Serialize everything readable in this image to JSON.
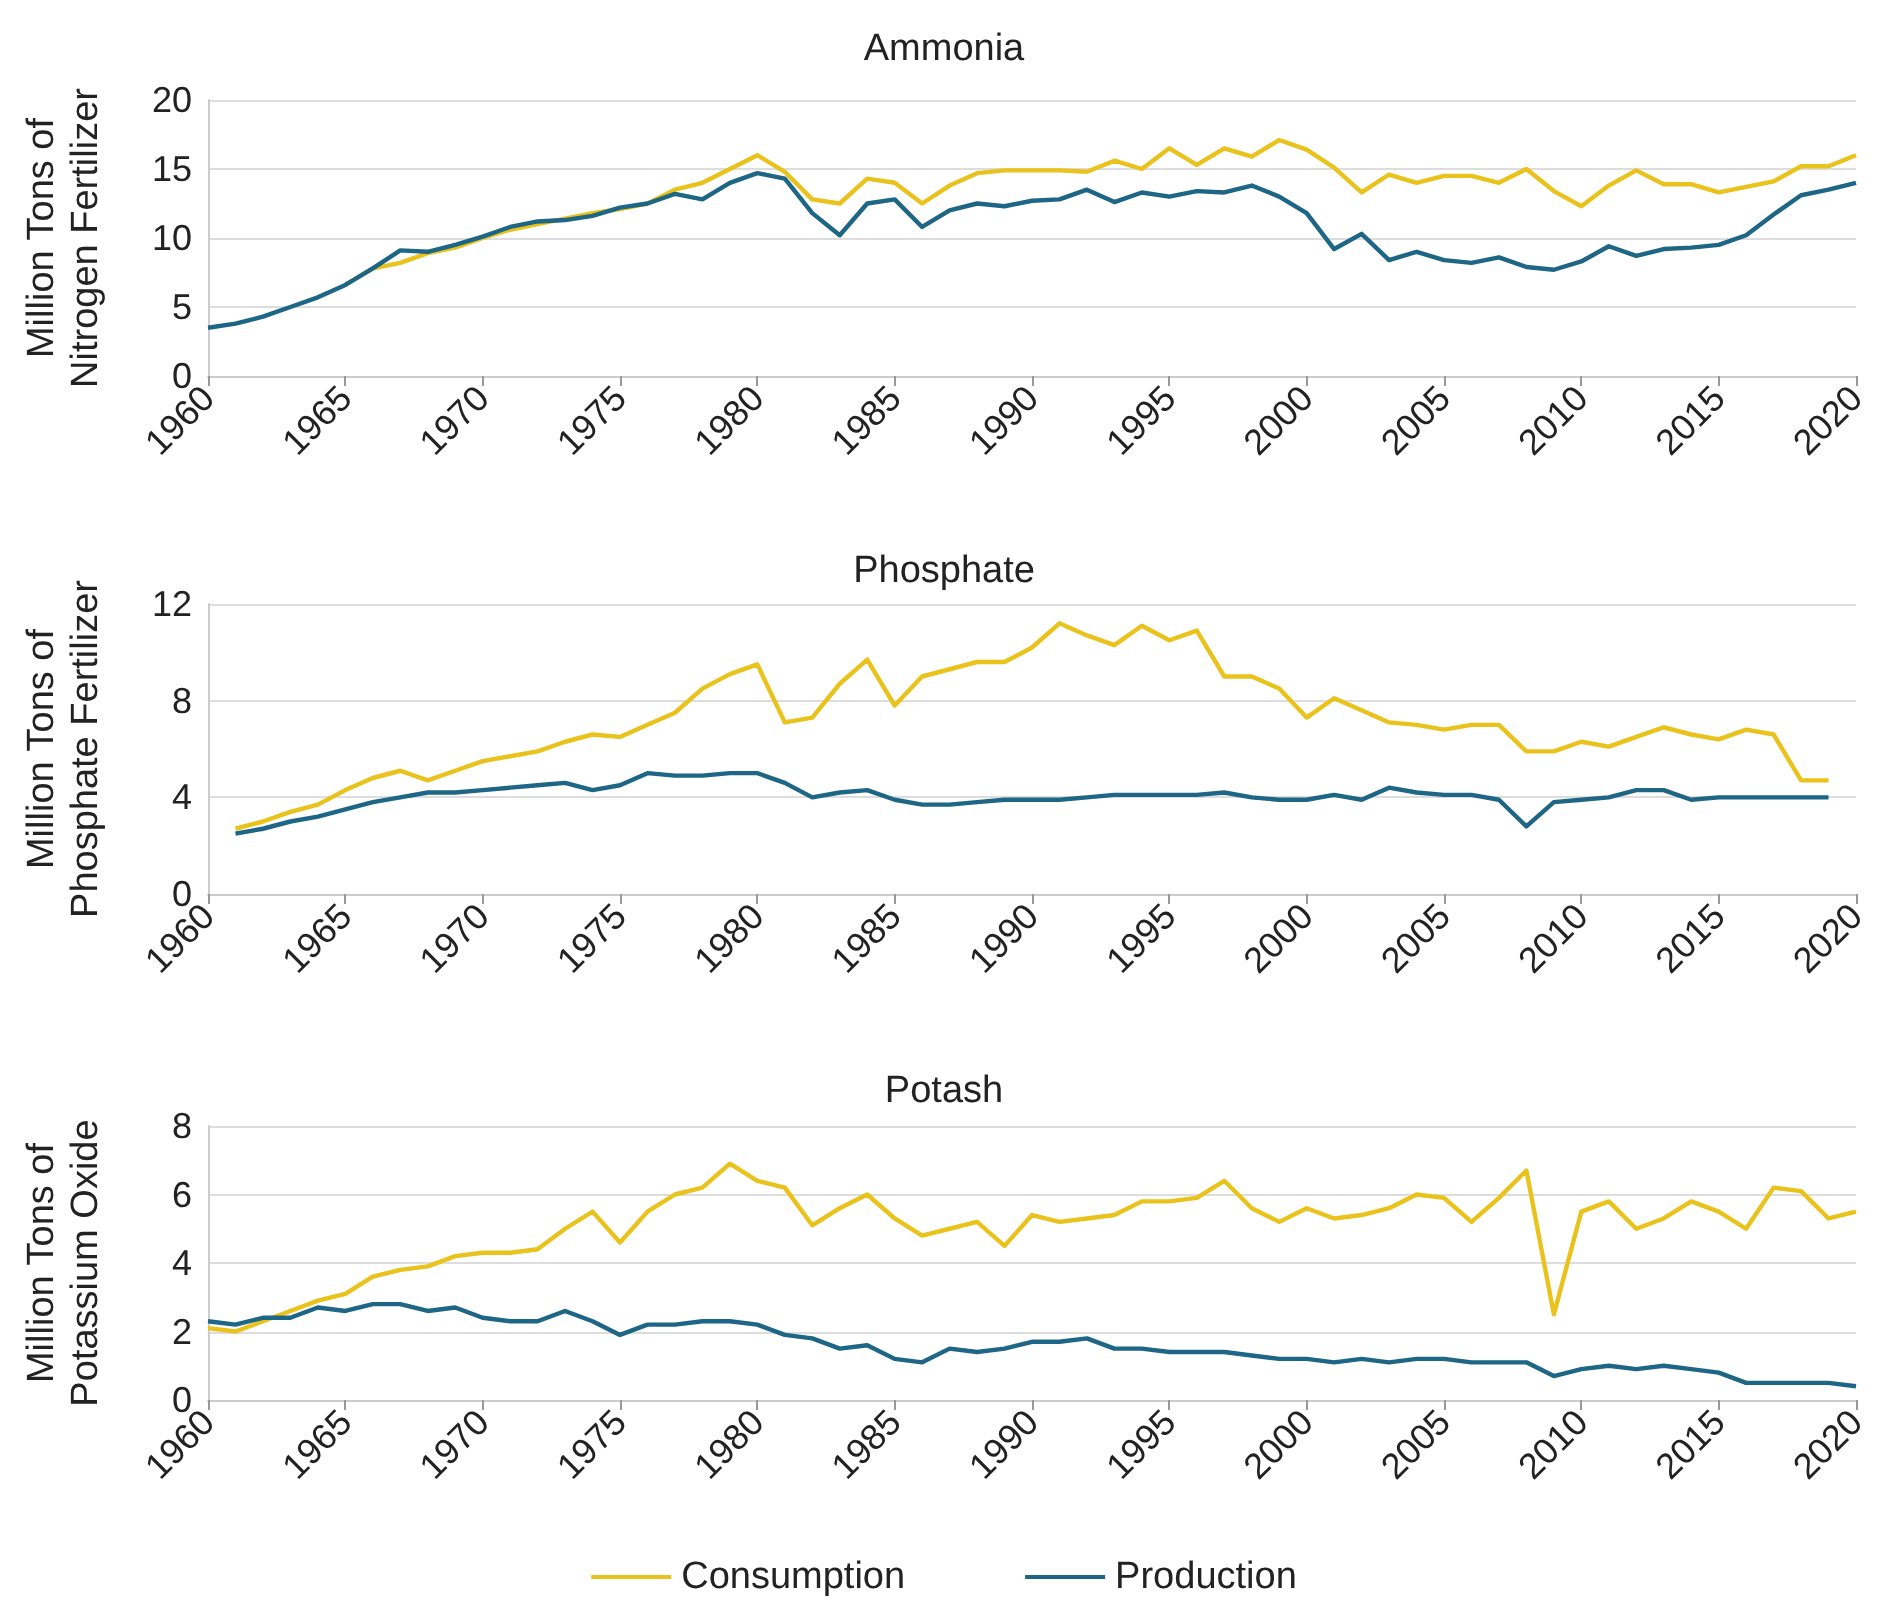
{
  "chart_data": [
    {
      "type": "line",
      "title": "Ammonia",
      "ylabel": "Million Tons of Nitrogen Fertilizer",
      "grid": "y",
      "marker": "none",
      "line_style": "solid",
      "x": [
        1960,
        1961,
        1962,
        1963,
        1964,
        1965,
        1966,
        1967,
        1968,
        1969,
        1970,
        1971,
        1972,
        1973,
        1974,
        1975,
        1976,
        1977,
        1978,
        1979,
        1980,
        1981,
        1982,
        1983,
        1984,
        1985,
        1986,
        1987,
        1988,
        1989,
        1990,
        1991,
        1992,
        1993,
        1994,
        1995,
        1996,
        1997,
        1998,
        1999,
        2000,
        2001,
        2002,
        2003,
        2004,
        2005,
        2006,
        2007,
        2008,
        2009,
        2010,
        2011,
        2012,
        2013,
        2014,
        2015,
        2016,
        2017,
        2018,
        2019,
        2020
      ],
      "xlim": [
        1960,
        2020
      ],
      "xticks": [
        1960,
        1965,
        1970,
        1975,
        1980,
        1985,
        1990,
        1995,
        2000,
        2005,
        2010,
        2015,
        2020
      ],
      "ylim": [
        0,
        20
      ],
      "yticks": [
        0,
        5,
        10,
        15,
        20
      ],
      "series": [
        {
          "color": "#e9c31b",
          "values": [
            null,
            null,
            null,
            null,
            null,
            6.6,
            7.8,
            8.2,
            8.9,
            9.3,
            10.0,
            10.6,
            11.0,
            11.4,
            11.8,
            12.1,
            12.5,
            13.5,
            14,
            15,
            16,
            14.8,
            12.8,
            12.5,
            14.3,
            14.0,
            12.5,
            13.8,
            14.7,
            14.9,
            14.9,
            14.9,
            14.8,
            15.6,
            15.0,
            16.5,
            15.3,
            16.5,
            15.9,
            17.1,
            16.4,
            15.1,
            13.3,
            14.6,
            14.0,
            14.5,
            14.5,
            14.0,
            15.0,
            13.4,
            12.3,
            13.8,
            14.9,
            13.9,
            13.9,
            13.3,
            13.7,
            14.1,
            15.2,
            15.2,
            16.0
          ]
        },
        {
          "color": "#1d6685",
          "values": [
            3.5,
            3.8,
            4.3,
            5,
            5.7,
            6.6,
            7.8,
            9.1,
            9.0,
            9.5,
            10.1,
            10.8,
            11.2,
            11.3,
            11.6,
            12.2,
            12.5,
            13.2,
            12.8,
            14.0,
            14.7,
            14.3,
            11.8,
            10.2,
            12.5,
            12.8,
            10.8,
            12.0,
            12.5,
            12.3,
            12.7,
            12.8,
            13.5,
            12.6,
            13.3,
            13.0,
            13.4,
            13.3,
            13.8,
            13.0,
            11.8,
            9.2,
            10.3,
            8.4,
            9.0,
            8.4,
            8.2,
            8.6,
            7.9,
            7.7,
            8.3,
            9.4,
            8.7,
            9.2,
            9.3,
            9.5,
            10.2,
            11.7,
            13.1,
            13.5,
            14.0
          ]
        }
      ]
    },
    {
      "type": "line",
      "title": "Phosphate",
      "ylabel": "Million Tons of Phosphate Fertilizer",
      "grid": "y",
      "marker": "none",
      "line_style": "solid",
      "x": [
        1961,
        1962,
        1963,
        1964,
        1965,
        1966,
        1967,
        1968,
        1969,
        1970,
        1971,
        1972,
        1973,
        1974,
        1975,
        1976,
        1977,
        1978,
        1979,
        1980,
        1981,
        1982,
        1983,
        1984,
        1985,
        1986,
        1987,
        1988,
        1989,
        1990,
        1991,
        1992,
        1993,
        1994,
        1995,
        1996,
        1997,
        1998,
        1999,
        2000,
        2001,
        2002,
        2003,
        2004,
        2005,
        2006,
        2007,
        2008,
        2009,
        2010,
        2011,
        2012,
        2013,
        2014,
        2015,
        2016,
        2017,
        2018,
        2019
      ],
      "xlim": [
        1960,
        2020
      ],
      "xticks": [
        1960,
        1965,
        1970,
        1975,
        1980,
        1985,
        1990,
        1995,
        2000,
        2005,
        2010,
        2015,
        2020
      ],
      "ylim": [
        0,
        12
      ],
      "yticks": [
        0,
        4,
        8,
        12
      ],
      "series": [
        {
          "color": "#e9c31b",
          "values": [
            2.7,
            3.0,
            3.4,
            3.7,
            4.3,
            4.8,
            5.1,
            4.7,
            5.1,
            5.5,
            5.7,
            5.9,
            6.3,
            6.6,
            6.5,
            7.0,
            7.5,
            8.5,
            9.1,
            9.5,
            7.1,
            7.3,
            8.7,
            9.7,
            7.8,
            9.0,
            9.3,
            9.6,
            9.6,
            10.2,
            11.2,
            10.7,
            10.3,
            11.1,
            10.5,
            10.9,
            9.0,
            9.0,
            8.5,
            7.3,
            8.1,
            7.6,
            7.1,
            7.0,
            6.8,
            7.0,
            7.0,
            5.9,
            5.9,
            6.3,
            6.1,
            6.5,
            6.9,
            6.6,
            6.4,
            6.8,
            6.6,
            4.7,
            4.7
          ]
        },
        {
          "color": "#1d6685",
          "values": [
            2.5,
            2.7,
            3.0,
            3.2,
            3.5,
            3.8,
            4.0,
            4.2,
            4.2,
            4.3,
            4.4,
            4.5,
            4.6,
            4.3,
            4.5,
            5.0,
            4.9,
            4.9,
            5.0,
            5.0,
            4.6,
            4.0,
            4.2,
            4.3,
            3.9,
            3.7,
            3.7,
            3.8,
            3.9,
            3.9,
            3.9,
            4.0,
            4.1,
            4.1,
            4.1,
            4.1,
            4.2,
            4.0,
            3.9,
            3.9,
            4.1,
            3.9,
            4.4,
            4.2,
            4.1,
            4.1,
            3.9,
            2.8,
            3.8,
            3.9,
            4.0,
            4.3,
            4.3,
            3.9,
            4.0,
            4.0,
            4.0,
            4.0,
            4.0
          ]
        }
      ]
    },
    {
      "type": "line",
      "title": "Potash",
      "ylabel": "Million Tons of Potassium Oxide",
      "grid": "y",
      "marker": "none",
      "line_style": "solid",
      "legend": "bottom",
      "x": [
        1960,
        1961,
        1962,
        1963,
        1964,
        1965,
        1966,
        1967,
        1968,
        1969,
        1970,
        1971,
        1972,
        1973,
        1974,
        1975,
        1976,
        1977,
        1978,
        1979,
        1980,
        1981,
        1982,
        1983,
        1984,
        1985,
        1986,
        1987,
        1988,
        1989,
        1990,
        1991,
        1992,
        1993,
        1994,
        1995,
        1996,
        1997,
        1998,
        1999,
        2000,
        2001,
        2002,
        2003,
        2004,
        2005,
        2006,
        2007,
        2008,
        2009,
        2010,
        2011,
        2012,
        2013,
        2014,
        2015,
        2016,
        2017,
        2018,
        2019,
        2020
      ],
      "xlim": [
        1960,
        2020
      ],
      "xticks": [
        1960,
        1965,
        1970,
        1975,
        1980,
        1985,
        1990,
        1995,
        2000,
        2005,
        2010,
        2015,
        2020
      ],
      "ylim": [
        0,
        8
      ],
      "yticks": [
        0,
        2,
        4,
        6,
        8
      ],
      "series": [
        {
          "name": "Consumption",
          "color": "#e9c31b",
          "values": [
            2.1,
            2.0,
            2.3,
            2.6,
            2.9,
            3.1,
            3.6,
            3.8,
            3.9,
            4.2,
            4.3,
            4.3,
            4.4,
            5.0,
            5.5,
            4.6,
            5.5,
            6.0,
            6.2,
            6.9,
            6.4,
            6.2,
            5.1,
            5.6,
            6.0,
            5.3,
            4.8,
            5.0,
            5.2,
            4.5,
            5.4,
            5.2,
            5.3,
            5.4,
            5.8,
            5.8,
            5.9,
            6.4,
            5.6,
            5.2,
            5.6,
            5.3,
            5.4,
            5.6,
            6.0,
            5.9,
            5.2,
            5.9,
            6.7,
            2.5,
            5.5,
            5.8,
            5.0,
            5.3,
            5.8,
            5.5,
            5.0,
            6.2,
            6.1,
            5.3,
            5.5
          ]
        },
        {
          "name": "Production",
          "color": "#1d6685",
          "values": [
            2.3,
            2.2,
            2.4,
            2.4,
            2.7,
            2.6,
            2.8,
            2.8,
            2.6,
            2.7,
            2.4,
            2.3,
            2.3,
            2.6,
            2.3,
            1.9,
            2.2,
            2.2,
            2.3,
            2.3,
            2.2,
            1.9,
            1.8,
            1.5,
            1.6,
            1.2,
            1.1,
            1.5,
            1.4,
            1.5,
            1.7,
            1.7,
            1.8,
            1.5,
            1.5,
            1.4,
            1.4,
            1.4,
            1.3,
            1.2,
            1.2,
            1.1,
            1.2,
            1.1,
            1.2,
            1.2,
            1.1,
            1.1,
            1.1,
            0.7,
            0.9,
            1.0,
            0.9,
            1.0,
            0.9,
            0.8,
            0.5,
            0.5,
            0.5,
            0.5,
            0.4
          ]
        }
      ]
    }
  ]
}
